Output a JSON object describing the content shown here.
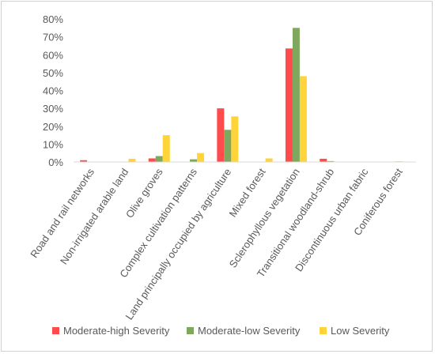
{
  "chart_data": {
    "type": "bar",
    "title": "",
    "xlabel": "",
    "ylabel": "",
    "ylim": [
      0,
      80
    ],
    "y_ticks": [
      "0%",
      "10%",
      "20%",
      "30%",
      "40%",
      "50%",
      "60%",
      "70%",
      "80%"
    ],
    "grid": false,
    "legend_position": "bottom",
    "categories": [
      "Road and rail networks",
      "Non-irrigated arable land",
      "Olive groves",
      "Complex cultivation patterns",
      "Land principally occupied by agriculture",
      "Mixed forest",
      "Sclerophyllous vegetation",
      "Transitional woodland-shrub",
      "Discontinuous urban fabric",
      "Coniferous forest"
    ],
    "series": [
      {
        "name": "Moderate-high Severity",
        "color": "#ff4b4b",
        "values": [
          1.0,
          0.0,
          2.0,
          0.0,
          30.0,
          0.0,
          63.5,
          1.8,
          0.0,
          0.0
        ]
      },
      {
        "name": "Moderate-low Severity",
        "color": "#7fa85e",
        "values": [
          0.0,
          0.0,
          3.3,
          1.5,
          18.0,
          0.0,
          75.0,
          0.5,
          0.0,
          0.3
        ]
      },
      {
        "name": "Low Severity",
        "color": "#ffd43b",
        "values": [
          0.0,
          1.8,
          15.0,
          5.0,
          25.5,
          2.0,
          48.0,
          0.0,
          0.0,
          0.0
        ]
      }
    ]
  }
}
